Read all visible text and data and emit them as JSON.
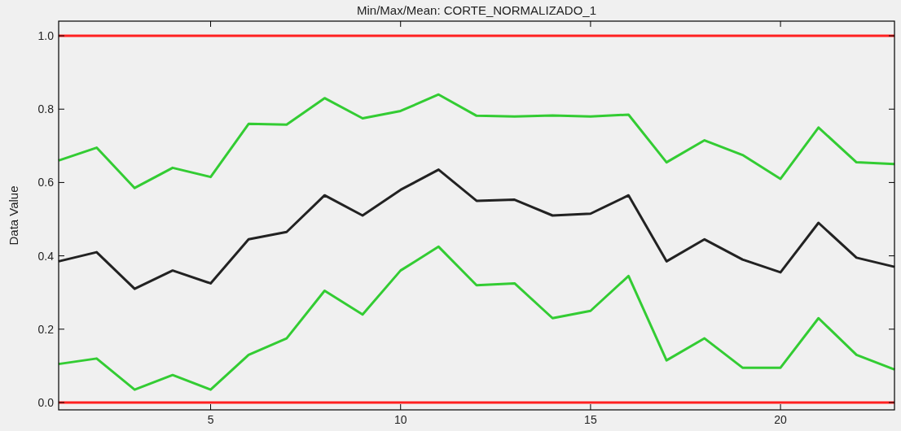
{
  "chart_data": {
    "type": "line",
    "title": "Min/Max/Mean: CORTE_NORMALIZADO_1",
    "ylabel": "Data Value",
    "x": [
      1,
      2,
      3,
      4,
      5,
      6,
      7,
      8,
      9,
      10,
      11,
      12,
      13,
      14,
      15,
      16,
      17,
      18,
      19,
      20,
      21,
      22,
      23
    ],
    "xlim": [
      1,
      23
    ],
    "xticks": [
      5,
      10,
      15,
      20
    ],
    "ylim": [
      -0.02,
      1.04
    ],
    "yticks": [
      {
        "value": 0,
        "label": "0.0"
      },
      {
        "value": 0.2,
        "label": "0.2"
      },
      {
        "value": 0.4,
        "label": "0.4"
      },
      {
        "value": 0.6,
        "label": "0.6"
      },
      {
        "value": 0.8,
        "label": "0.8"
      },
      {
        "value": 1.0,
        "label": "1.0"
      }
    ],
    "grid": false,
    "marker": "none",
    "line_style": "solid",
    "series": [
      {
        "color": "#ff2020",
        "values": [
          1,
          1,
          1,
          1,
          1,
          1,
          1,
          1,
          1,
          1,
          1,
          1,
          1,
          1,
          1,
          1,
          1,
          1,
          1,
          1,
          1,
          1,
          1
        ]
      },
      {
        "color": "#ff2020",
        "values": [
          0,
          0,
          0,
          0,
          0,
          0,
          0,
          0,
          0,
          0,
          0,
          0,
          0,
          0,
          0,
          0,
          0,
          0,
          0,
          0,
          0,
          0,
          0
        ]
      },
      {
        "color": "#33cc33",
        "values": [
          0.66,
          0.695,
          0.585,
          0.64,
          0.615,
          0.76,
          0.758,
          0.83,
          0.775,
          0.795,
          0.84,
          0.782,
          0.78,
          0.783,
          0.78,
          0.785,
          0.655,
          0.715,
          0.675,
          0.61,
          0.75,
          0.655,
          0.65
        ]
      },
      {
        "color": "#222222",
        "values": [
          0.385,
          0.41,
          0.31,
          0.36,
          0.325,
          0.445,
          0.465,
          0.565,
          0.51,
          0.58,
          0.635,
          0.55,
          0.553,
          0.51,
          0.515,
          0.565,
          0.385,
          0.445,
          0.39,
          0.355,
          0.49,
          0.395,
          0.37
        ]
      },
      {
        "color": "#33cc33",
        "values": [
          0.105,
          0.12,
          0.035,
          0.075,
          0.035,
          0.13,
          0.175,
          0.305,
          0.24,
          0.36,
          0.425,
          0.32,
          0.325,
          0.23,
          0.25,
          0.345,
          0.115,
          0.175,
          0.095,
          0.095,
          0.23,
          0.13,
          0.09
        ]
      }
    ]
  }
}
